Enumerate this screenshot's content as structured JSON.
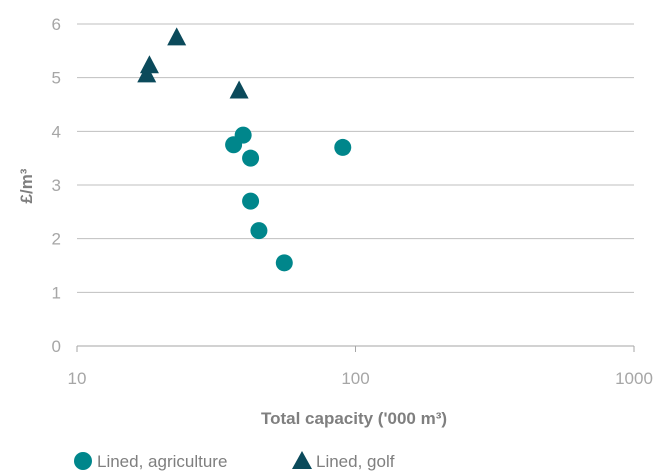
{
  "chart_data": {
    "type": "scatter",
    "xlabel": "Total capacity ('000 m³)",
    "ylabel": "£/m³",
    "x_scale": "log",
    "xlim": [
      10,
      1000
    ],
    "ylim": [
      0,
      6
    ],
    "x_ticks": [
      "10",
      "100",
      "1000"
    ],
    "y_ticks": [
      "0",
      "1",
      "2",
      "3",
      "4",
      "5",
      "6"
    ],
    "grid": "horizontal",
    "legend_position": "bottom-left",
    "series": [
      {
        "name": "Lined, agriculture",
        "marker": "circle",
        "color": "#00868b",
        "points": [
          {
            "x": 36.5,
            "y": 3.75
          },
          {
            "x": 39.5,
            "y": 3.93
          },
          {
            "x": 42,
            "y": 3.5
          },
          {
            "x": 42,
            "y": 2.7
          },
          {
            "x": 45,
            "y": 2.15
          },
          {
            "x": 55.5,
            "y": 1.55
          },
          {
            "x": 90,
            "y": 3.7
          }
        ]
      },
      {
        "name": "Lined, golf",
        "marker": "triangle",
        "color": "#0b4a5b",
        "points": [
          {
            "x": 17.8,
            "y": 5.08
          },
          {
            "x": 18.2,
            "y": 5.25
          },
          {
            "x": 22.8,
            "y": 5.77
          },
          {
            "x": 38.2,
            "y": 4.78
          }
        ]
      }
    ]
  }
}
